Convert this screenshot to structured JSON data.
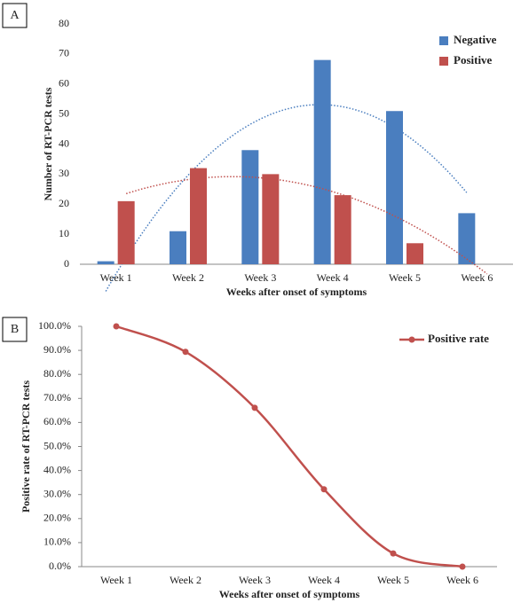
{
  "chart_data": [
    {
      "type": "bar",
      "panel": "A",
      "categories": [
        "Week 1",
        "Week 2",
        "Week 3",
        "Week 4",
        "Week 5",
        "Week 6"
      ],
      "series": [
        {
          "name": "Negative",
          "color": "#4a7ebf",
          "values": [
            1,
            11,
            38,
            68,
            51,
            17
          ],
          "trendline_order": 2
        },
        {
          "name": "Positive",
          "color": "#c0504d",
          "values": [
            21,
            32,
            30,
            23,
            7,
            0
          ],
          "trendline_order": 2
        }
      ],
      "xlabel": "Weeks after onset of symptoms",
      "ylabel": "Number of RT-PCR tests",
      "ylim": [
        0,
        80
      ],
      "yticks": [
        0,
        10,
        20,
        30,
        40,
        50,
        60,
        70,
        80
      ],
      "legend": "upper right"
    },
    {
      "type": "line",
      "panel": "B",
      "categories": [
        "Week 1",
        "Week 2",
        "Week 3",
        "Week 4",
        "Week 5",
        "Week 6"
      ],
      "series": [
        {
          "name": "Positive rate",
          "color": "#c0504d",
          "values": [
            100,
            89.4,
            66.1,
            32.2,
            5.5,
            0
          ]
        }
      ],
      "xlabel": "Weeks after onset of symptoms",
      "ylabel": "Positive rate of RT-PCR tests",
      "ylim": [
        0,
        100
      ],
      "yticks": [
        {
          "value": 0,
          "label": "0.0%"
        },
        {
          "value": 10,
          "label": "10.0%"
        },
        {
          "value": 20,
          "label": "20.0%"
        },
        {
          "value": 30,
          "label": "30.0%"
        },
        {
          "value": 40,
          "label": "40.0%"
        },
        {
          "value": 50,
          "label": "50.0%"
        },
        {
          "value": 60,
          "label": "60.0%"
        },
        {
          "value": 70,
          "label": "70.0%"
        },
        {
          "value": 80,
          "label": "80.0%"
        },
        {
          "value": 90,
          "label": "90.0%"
        },
        {
          "value": 100,
          "label": "100.0%"
        }
      ],
      "legend": "upper right"
    }
  ]
}
